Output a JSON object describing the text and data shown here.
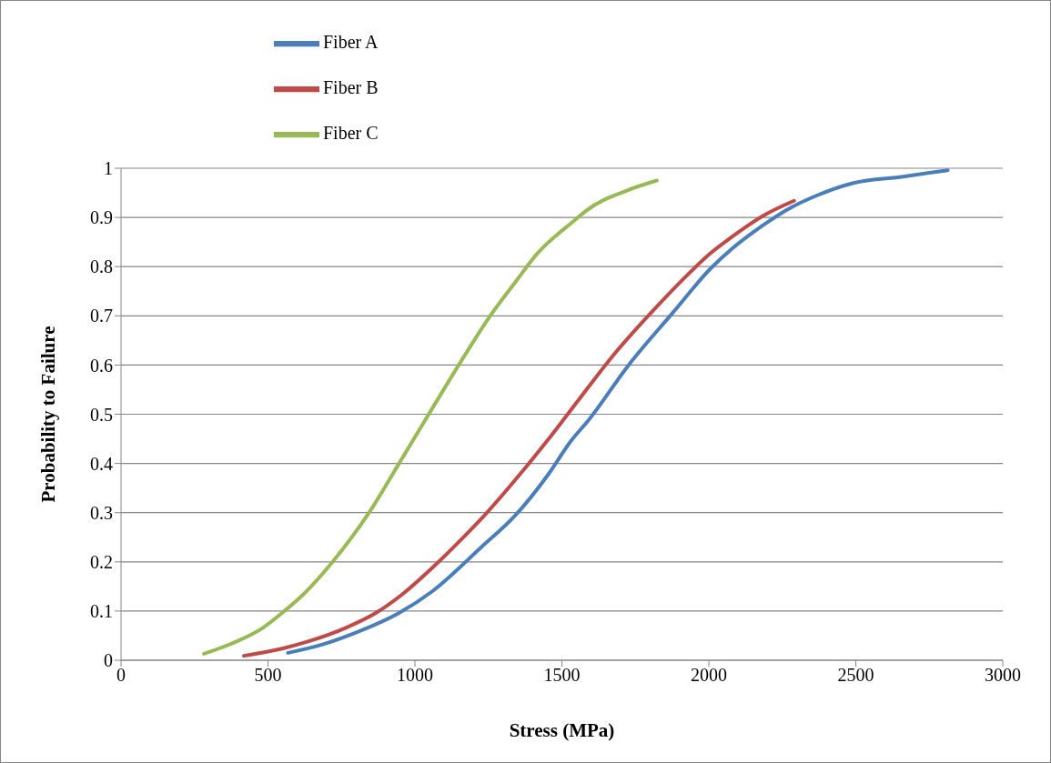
{
  "chart_data": {
    "type": "line",
    "xlabel": "Stress (MPa)",
    "ylabel": "Probability to Failure",
    "xlim": [
      0,
      3000
    ],
    "xticks": [
      0,
      500,
      1000,
      1500,
      2000,
      2500,
      3000
    ],
    "ylim": [
      0,
      1
    ],
    "yticks": [
      0,
      0.1,
      0.2,
      0.3,
      0.4,
      0.5,
      0.6,
      0.7,
      0.8,
      0.9,
      1
    ],
    "grid": "y",
    "legend": "top left",
    "marker": "none",
    "line_style": "solid",
    "series": [
      {
        "name": "Fiber A",
        "color": "#4a7ebb",
        "x": [
          568,
          686,
          799,
          946,
          1059,
          1228,
          1341,
          1454,
          1530,
          1592,
          1727,
          1874,
          2009,
          2076,
          2189,
          2267,
          2369,
          2492,
          2661,
          2813
        ],
        "values": [
          0.015,
          0.032,
          0.056,
          0.096,
          0.14,
          0.231,
          0.294,
          0.378,
          0.445,
          0.489,
          0.6,
          0.704,
          0.798,
          0.835,
          0.886,
          0.916,
          0.945,
          0.97,
          0.983,
          0.996
        ]
      },
      {
        "name": "Fiber B",
        "color": "#be4b48",
        "x": [
          418,
          551,
          641,
          765,
          867,
          957,
          1070,
          1160,
          1251,
          1363,
          1454,
          1558,
          1671,
          1817,
          1930,
          2009,
          2059,
          2189,
          2290
        ],
        "values": [
          0.009,
          0.024,
          0.039,
          0.066,
          0.096,
          0.134,
          0.194,
          0.247,
          0.304,
          0.382,
          0.449,
          0.53,
          0.617,
          0.715,
          0.785,
          0.829,
          0.852,
          0.905,
          0.934
        ]
      },
      {
        "name": "Fiber C",
        "color": "#98b954",
        "x": [
          282,
          393,
          483,
          556,
          619,
          720,
          844,
          946,
          1047,
          1149,
          1256,
          1341,
          1414,
          1547,
          1581,
          1727,
          1823
        ],
        "values": [
          0.013,
          0.038,
          0.066,
          0.1,
          0.133,
          0.2,
          0.3,
          0.4,
          0.5,
          0.6,
          0.7,
          0.768,
          0.825,
          0.896,
          0.913,
          0.956,
          0.975
        ]
      }
    ]
  }
}
